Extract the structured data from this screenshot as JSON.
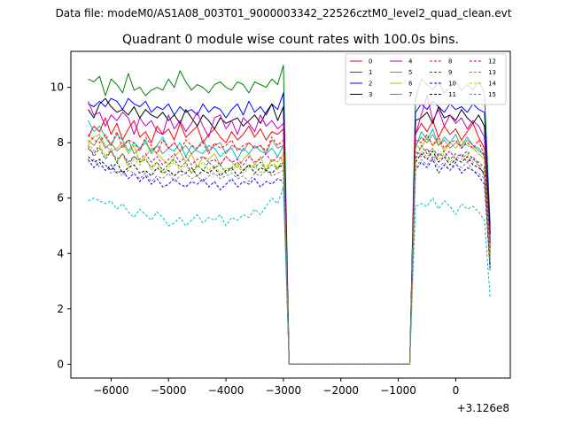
{
  "suptitle": "Data file: modeM0/AS1A08_003T01_9000003342_22526cztM0_level2_quad_clean.evt",
  "chart_data": {
    "type": "line",
    "title": "Quadrant 0 module wise count rates with 100.0s bins.",
    "xlabel": "",
    "ylabel": "",
    "offset_label": "+3.126e8",
    "xlim": [
      -6700,
      950
    ],
    "ylim": [
      -0.5,
      11.3
    ],
    "xticks": [
      -6000,
      -5000,
      -4000,
      -3000,
      -2000,
      -1000,
      0
    ],
    "xtick_labels": [
      "−6000",
      "−5000",
      "−4000",
      "−3000",
      "−2000",
      "−1000",
      "0"
    ],
    "yticks": [
      0,
      2,
      4,
      6,
      8,
      10
    ],
    "grid": false,
    "legend_position": "top-right",
    "x": [
      -6400,
      -6300,
      -6200,
      -6100,
      -6000,
      -5900,
      -5800,
      -5700,
      -5600,
      -5500,
      -5400,
      -5300,
      -5200,
      -5100,
      -5000,
      -4900,
      -4800,
      -4700,
      -4600,
      -4500,
      -4400,
      -4300,
      -4200,
      -4100,
      -4000,
      -3900,
      -3800,
      -3700,
      -3600,
      -3500,
      -3400,
      -3300,
      -3200,
      -3100,
      -3000,
      -2900,
      -2800,
      -2700,
      -2600,
      -2500,
      -2400,
      -2300,
      -2200,
      -2100,
      -2000,
      -1900,
      -1800,
      -1700,
      -1600,
      -1500,
      -1400,
      -1300,
      -1200,
      -1100,
      -1000,
      -900,
      -800,
      -700,
      -600,
      -500,
      -400,
      -300,
      -200,
      -100,
      0,
      100,
      200,
      300,
      400,
      500,
      600
    ],
    "series": [
      {
        "name": "0",
        "color": "#ff0000",
        "dash": "solid",
        "active1": [
          8.2,
          8.6,
          8.4,
          8.9,
          8.3,
          8.7,
          8.1,
          8.5,
          8.8,
          8.2,
          8.4,
          8.0,
          8.6,
          8.3,
          8.5,
          8.1,
          8.7,
          8.2,
          8.4,
          8.6,
          8.0,
          8.3,
          8.5,
          8.2,
          8.0,
          8.4,
          8.1,
          8.3,
          8.6,
          8.2,
          8.5,
          8.1,
          8.4,
          8.3,
          8.5
        ],
        "active2": [
          8.3,
          8.7,
          8.4,
          8.8,
          8.2,
          8.6,
          8.3,
          8.5,
          8.1,
          8.4,
          8.7,
          8.2,
          7.8
        ],
        "end": 4.8
      },
      {
        "name": "1",
        "color": "#008000",
        "dash": "solid",
        "active1": [
          10.3,
          10.2,
          10.4,
          9.7,
          10.3,
          10.1,
          9.8,
          10.5,
          9.9,
          10.0,
          9.7,
          9.9,
          10.0,
          9.9,
          10.3,
          10.0,
          10.6,
          10.2,
          9.9,
          10.1,
          10.0,
          9.8,
          10.1,
          10.2,
          10.0,
          9.9,
          10.2,
          10.1,
          9.8,
          10.2,
          10.1,
          10.0,
          10.3,
          10.1,
          10.8
        ],
        "active2": [
          9.6,
          10.3,
          10.1,
          9.9,
          10.2,
          9.8,
          10.0,
          10.2,
          9.9,
          10.1,
          9.9,
          10.2,
          9.8
        ],
        "end": 5.0
      },
      {
        "name": "2",
        "color": "#0000ff",
        "dash": "solid",
        "active1": [
          9.4,
          9.3,
          9.5,
          9.3,
          9.6,
          9.5,
          9.2,
          9.6,
          9.4,
          9.3,
          9.5,
          9.1,
          9.3,
          9.2,
          9.4,
          9.0,
          9.3,
          9.1,
          9.2,
          9.0,
          9.4,
          9.1,
          9.3,
          9.2,
          8.9,
          9.2,
          9.4,
          9.0,
          9.5,
          9.1,
          9.3,
          9.0,
          9.4,
          9.2,
          9.8
        ],
        "active2": [
          9.1,
          9.4,
          9.2,
          9.5,
          9.3,
          9.1,
          9.4,
          9.2,
          9.3,
          9.1,
          9.4,
          9.2,
          9.1
        ],
        "end": 4.7
      },
      {
        "name": "3",
        "color": "#000000",
        "dash": "solid",
        "active1": [
          9.2,
          8.9,
          9.4,
          9.6,
          9.3,
          9.1,
          9.2,
          9.0,
          9.3,
          8.9,
          9.2,
          9.0,
          8.9,
          9.1,
          8.8,
          9.0,
          8.7,
          9.2,
          8.9,
          8.6,
          9.0,
          8.8,
          8.5,
          8.9,
          8.7,
          8.8,
          8.9,
          8.6,
          8.8,
          9.0,
          8.7,
          9.1,
          9.4,
          8.8,
          9.3
        ],
        "active2": [
          8.8,
          8.9,
          9.1,
          8.7,
          9.3,
          8.9,
          9.0,
          8.8,
          9.2,
          8.9,
          8.7,
          9.0,
          8.6
        ],
        "end": 4.4
      },
      {
        "name": "4",
        "color": "#bf00bf",
        "dash": "solid",
        "active1": [
          9.5,
          9.0,
          9.1,
          8.6,
          9.0,
          8.8,
          9.1,
          8.9,
          8.3,
          8.9,
          8.6,
          8.8,
          8.4,
          8.3,
          9.0,
          8.5,
          8.8,
          8.4,
          8.7,
          9.1,
          8.6,
          8.2,
          8.9,
          9.0,
          8.5,
          8.8,
          8.3,
          8.9,
          8.7,
          8.4,
          9.0,
          8.6,
          8.8,
          8.5,
          8.7
        ],
        "active2": [
          8.3,
          9.0,
          9.7,
          8.8,
          9.2,
          8.6,
          9.0,
          8.7,
          8.9,
          8.5,
          8.8,
          8.6,
          8.2
        ],
        "end": 4.2
      },
      {
        "name": "5",
        "color": "#00bfbf",
        "dash": "solid",
        "active1": [
          8.8,
          8.4,
          8.6,
          8.2,
          7.9,
          8.3,
          8.1,
          7.7,
          8.0,
          7.8,
          8.1,
          7.6,
          7.9,
          8.2,
          7.8,
          7.7,
          8.0,
          7.5,
          7.9,
          7.7,
          7.6,
          7.9,
          7.8,
          7.5,
          7.7,
          7.8,
          7.4,
          7.8,
          7.6,
          7.9,
          7.7,
          7.6,
          7.8,
          7.5,
          7.9
        ],
        "active2": [
          7.8,
          8.4,
          8.1,
          8.5,
          7.9,
          8.2,
          8.0,
          8.3,
          7.8,
          8.1,
          7.9,
          7.8,
          7.5
        ],
        "end": 4.1
      },
      {
        "name": "6",
        "color": "#bfbf00",
        "dash": "solid",
        "active1": [
          8.0,
          8.2,
          8.3,
          7.9,
          7.7,
          7.8,
          8.0,
          7.6,
          7.9,
          7.3,
          7.5,
          7.8,
          7.6,
          7.4,
          7.2,
          7.5,
          7.7,
          7.3,
          7.6,
          7.1,
          7.5,
          7.4,
          7.6,
          7.2,
          7.5,
          7.3,
          7.1,
          7.4,
          7.6,
          7.2,
          7.5,
          7.0,
          7.4,
          7.3,
          7.6
        ],
        "active2": [
          7.9,
          7.8,
          8.2,
          7.9,
          8.1,
          7.7,
          8.0,
          7.8,
          8.1,
          7.9,
          7.8,
          7.6,
          7.4
        ],
        "end": 3.9
      },
      {
        "name": "7",
        "color": "#808080",
        "dash": "solid",
        "active1": [
          8.1,
          7.9,
          8.2,
          7.8,
          8.0,
          7.7,
          7.9,
          8.1,
          7.6,
          7.8,
          8.0,
          7.7,
          7.9,
          7.6,
          7.8,
          8.0,
          7.7,
          7.9,
          7.6,
          7.8,
          8.1,
          7.7,
          7.9,
          8.0,
          7.6,
          7.9,
          7.8,
          7.7,
          8.0,
          7.8,
          7.9,
          7.6,
          8.1,
          7.8,
          7.9
        ],
        "active2": [
          7.9,
          8.2,
          8.0,
          8.3,
          7.9,
          8.1,
          7.8,
          8.0,
          7.9,
          8.2,
          7.9,
          7.7,
          7.6
        ],
        "end": 4.0
      },
      {
        "name": "8",
        "color": "#ff0000",
        "dash": "dashed",
        "active1": [
          8.3,
          8.1,
          8.0,
          8.3,
          7.9,
          8.4,
          7.8,
          8.1,
          8.0,
          7.7,
          8.2,
          7.9,
          7.6,
          8.1,
          7.8,
          8.0,
          7.7,
          8.1,
          7.9,
          7.8,
          8.0,
          7.6,
          8.0,
          7.8,
          7.9,
          8.1,
          7.7,
          7.9,
          8.0,
          7.8,
          7.9,
          7.7,
          8.2,
          7.9,
          8.1
        ],
        "active2": [
          8.1,
          8.0,
          8.3,
          7.9,
          8.2,
          7.8,
          8.0,
          8.1,
          7.8,
          8.0,
          7.8,
          8.1,
          7.5
        ],
        "end": 4.3
      },
      {
        "name": "9",
        "color": "#008000",
        "dash": "dashed",
        "active1": [
          7.9,
          7.5,
          7.8,
          7.4,
          7.7,
          7.3,
          7.6,
          7.2,
          7.5,
          7.3,
          7.4,
          7.1,
          7.3,
          7.0,
          7.2,
          7.4,
          7.1,
          7.3,
          6.9,
          7.2,
          7.0,
          7.3,
          7.1,
          7.2,
          6.9,
          7.1,
          7.3,
          7.0,
          7.2,
          7.1,
          7.3,
          7.0,
          7.2,
          7.1,
          7.3
        ],
        "active2": [
          7.4,
          7.9,
          7.6,
          7.8,
          7.5,
          7.7,
          7.4,
          7.6,
          7.5,
          7.7,
          7.4,
          7.3,
          7.1
        ],
        "end": 3.6
      },
      {
        "name": "10",
        "color": "#0000ff",
        "dash": "dashed",
        "active1": [
          7.4,
          7.1,
          7.3,
          7.0,
          7.2,
          6.9,
          7.0,
          6.7,
          6.9,
          6.6,
          6.8,
          6.5,
          6.7,
          6.4,
          6.5,
          6.7,
          6.5,
          6.4,
          6.6,
          6.5,
          6.7,
          6.4,
          6.6,
          6.3,
          6.5,
          6.7,
          6.4,
          6.6,
          6.5,
          6.7,
          6.4,
          6.6,
          6.5,
          6.7,
          6.6
        ],
        "active2": [
          7.0,
          7.3,
          7.1,
          7.4,
          6.9,
          7.2,
          7.0,
          7.3,
          6.9,
          7.1,
          7.0,
          6.8,
          6.5
        ],
        "end": 3.4
      },
      {
        "name": "11",
        "color": "#000000",
        "dash": "dashed",
        "active1": [
          7.5,
          7.3,
          7.4,
          7.2,
          7.0,
          7.3,
          6.9,
          7.1,
          7.2,
          6.9,
          7.0,
          6.8,
          7.1,
          6.9,
          7.0,
          6.8,
          7.0,
          6.9,
          7.1,
          6.8,
          7.0,
          6.9,
          7.1,
          6.8,
          7.0,
          7.1,
          6.8,
          7.0,
          7.2,
          6.9,
          7.1,
          7.0,
          6.9,
          7.1,
          7.2
        ],
        "active2": [
          7.3,
          7.6,
          7.4,
          7.7,
          7.3,
          7.5,
          7.2,
          7.4,
          7.3,
          7.5,
          7.2,
          7.1,
          6.9
        ],
        "end": 3.5
      },
      {
        "name": "12",
        "color": "#bf00bf",
        "dash": "dashed",
        "active1": [
          7.8,
          7.6,
          7.9,
          7.5,
          7.7,
          7.4,
          7.6,
          7.3,
          7.5,
          7.4,
          7.6,
          7.3,
          7.5,
          7.2,
          7.4,
          7.6,
          7.3,
          7.5,
          7.2,
          7.4,
          7.5,
          7.3,
          7.4,
          7.2,
          7.5,
          7.3,
          7.4,
          7.2,
          7.5,
          7.3,
          7.4,
          7.6,
          7.3,
          7.5,
          7.4
        ],
        "active2": [
          7.7,
          7.5,
          7.8,
          7.4,
          7.6,
          7.5,
          7.7,
          7.4,
          7.6,
          7.3,
          7.5,
          7.2,
          6.8
        ],
        "end": 3.8
      },
      {
        "name": "13",
        "color": "#00bfbf",
        "dash": "dashed",
        "active1": [
          5.9,
          6.0,
          5.9,
          5.8,
          5.9,
          5.6,
          5.8,
          5.5,
          5.3,
          5.6,
          5.4,
          5.2,
          5.5,
          5.3,
          5.0,
          5.1,
          5.3,
          5.0,
          5.2,
          5.4,
          5.1,
          5.3,
          5.2,
          5.4,
          5.0,
          5.3,
          5.2,
          5.4,
          5.3,
          5.6,
          5.4,
          5.7,
          6.0,
          5.8,
          6.4
        ],
        "active2": [
          5.7,
          5.8,
          5.7,
          6.0,
          5.6,
          5.9,
          5.7,
          5.4,
          5.8,
          5.6,
          5.7,
          5.5,
          5.2
        ],
        "end": 2.4
      },
      {
        "name": "14",
        "color": "#bfbf00",
        "dash": "dashed",
        "active1": [
          8.0,
          7.7,
          7.9,
          7.5,
          7.8,
          7.3,
          7.6,
          7.1,
          7.4,
          7.2,
          7.5,
          7.0,
          7.3,
          6.9,
          7.1,
          7.3,
          7.0,
          7.2,
          6.9,
          7.1,
          7.3,
          7.0,
          7.2,
          6.9,
          7.1,
          7.0,
          7.2,
          6.9,
          7.1,
          7.2,
          6.9,
          7.1,
          7.4,
          7.0,
          7.5
        ],
        "active2": [
          7.4,
          7.7,
          7.5,
          7.8,
          7.4,
          7.6,
          7.3,
          7.5,
          7.4,
          7.6,
          7.3,
          7.2,
          7.0
        ],
        "end": 3.7
      },
      {
        "name": "15",
        "color": "#808080",
        "dash": "dashed",
        "active1": [
          7.3,
          7.4,
          7.1,
          7.2,
          6.9,
          7.0,
          6.8,
          7.0,
          6.9,
          6.7,
          6.9,
          6.6,
          6.8,
          6.7,
          6.9,
          6.6,
          6.8,
          6.9,
          6.7,
          6.8,
          6.6,
          6.8,
          6.9,
          6.7,
          6.8,
          6.9,
          6.7,
          6.8,
          6.6,
          6.9,
          6.8,
          7.0,
          6.8,
          6.9,
          7.0
        ],
        "active2": [
          7.1,
          7.4,
          7.2,
          7.5,
          7.1,
          7.3,
          7.0,
          7.2,
          7.1,
          7.3,
          7.0,
          6.9,
          6.7
        ],
        "end": 3.3
      }
    ]
  }
}
